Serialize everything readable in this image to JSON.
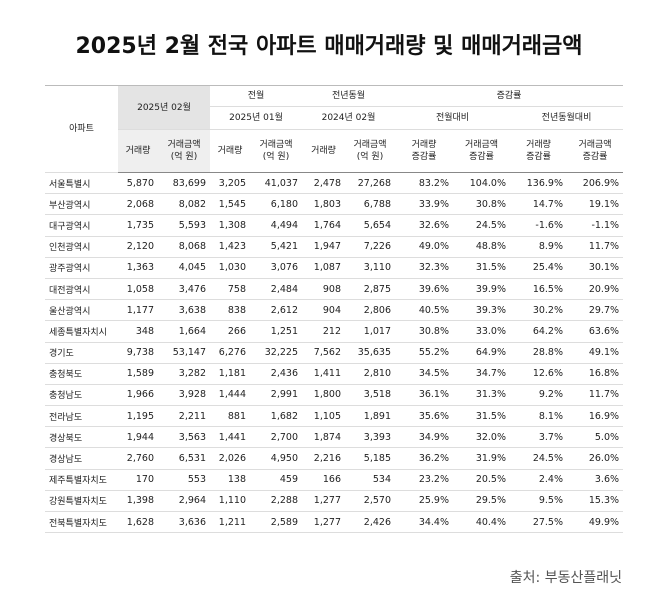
{
  "title": "2025년 2월 전국 아파트 매매거래량 및 매매거래금액",
  "table": {
    "header": {
      "region": "아파트",
      "current": "2025년 02월",
      "prev_month": "전월",
      "prev_year": "전년동월",
      "change": "증감률",
      "prev_month_date": "2025년 01월",
      "prev_year_date": "2024년 02월",
      "mom": "전월대비",
      "yoy": "전년동월대비",
      "columns": [
        "거래량",
        "거래금액\n(억 원)",
        "거래량",
        "거래금액\n(억 원)",
        "거래량",
        "거래금액\n(억 원)",
        "거래량\n증감률",
        "거래금액\n증감률",
        "거래량\n증감률",
        "거래금액\n증감률"
      ]
    },
    "rows": [
      [
        "서울특별시",
        "5,870",
        "83,699",
        "3,205",
        "41,037",
        "2,478",
        "27,268",
        {
          "value": 83.2,
          "label": "83.2%"
        },
        {
          "value": 104.0,
          "label": "104.0%"
        },
        {
          "value": 136.9,
          "label": "136.9%"
        },
        {
          "value": 206.9,
          "label": "206.9%"
        }
      ],
      [
        "부산광역시",
        "2,068",
        "8,082",
        "1,545",
        "6,180",
        "1,803",
        "6,788",
        {
          "value": 33.9,
          "label": "33.9%"
        },
        {
          "value": 30.8,
          "label": "30.8%"
        },
        {
          "value": 14.7,
          "label": "14.7%"
        },
        {
          "value": 19.1,
          "label": "19.1%"
        }
      ],
      [
        "대구광역시",
        "1,735",
        "5,593",
        "1,308",
        "4,494",
        "1,764",
        "5,654",
        {
          "value": 32.6,
          "label": "32.6%"
        },
        {
          "value": 24.5,
          "label": "24.5%"
        },
        {
          "value": -1.6,
          "label": "-1.6%"
        },
        {
          "value": -1.1,
          "label": "-1.1%"
        }
      ],
      [
        "인천광역시",
        "2,120",
        "8,068",
        "1,423",
        "5,421",
        "1,947",
        "7,226",
        {
          "value": 49.0,
          "label": "49.0%"
        },
        {
          "value": 48.8,
          "label": "48.8%"
        },
        {
          "value": 8.9,
          "label": "8.9%"
        },
        {
          "value": 11.7,
          "label": "11.7%"
        }
      ],
      [
        "광주광역시",
        "1,363",
        "4,045",
        "1,030",
        "3,076",
        "1,087",
        "3,110",
        {
          "value": 32.3,
          "label": "32.3%"
        },
        {
          "value": 31.5,
          "label": "31.5%"
        },
        {
          "value": 25.4,
          "label": "25.4%"
        },
        {
          "value": 30.1,
          "label": "30.1%"
        }
      ],
      [
        "대전광역시",
        "1,058",
        "3,476",
        "758",
        "2,484",
        "908",
        "2,875",
        {
          "value": 39.6,
          "label": "39.6%"
        },
        {
          "value": 39.9,
          "label": "39.9%"
        },
        {
          "value": 16.5,
          "label": "16.5%"
        },
        {
          "value": 20.9,
          "label": "20.9%"
        }
      ],
      [
        "울산광역시",
        "1,177",
        "3,638",
        "838",
        "2,612",
        "904",
        "2,806",
        {
          "value": 40.5,
          "label": "40.5%"
        },
        {
          "value": 39.3,
          "label": "39.3%"
        },
        {
          "value": 30.2,
          "label": "30.2%"
        },
        {
          "value": 29.7,
          "label": "29.7%"
        }
      ],
      [
        "세종특별자치시",
        "348",
        "1,664",
        "266",
        "1,251",
        "212",
        "1,017",
        {
          "value": 30.8,
          "label": "30.8%"
        },
        {
          "value": 33.0,
          "label": "33.0%"
        },
        {
          "value": 64.2,
          "label": "64.2%"
        },
        {
          "value": 63.6,
          "label": "63.6%"
        }
      ],
      [
        "경기도",
        "9,738",
        "53,147",
        "6,276",
        "32,225",
        "7,562",
        "35,635",
        {
          "value": 55.2,
          "label": "55.2%"
        },
        {
          "value": 64.9,
          "label": "64.9%"
        },
        {
          "value": 28.8,
          "label": "28.8%"
        },
        {
          "value": 49.1,
          "label": "49.1%"
        }
      ],
      [
        "충청북도",
        "1,589",
        "3,282",
        "1,181",
        "2,436",
        "1,411",
        "2,810",
        {
          "value": 34.5,
          "label": "34.5%"
        },
        {
          "value": 34.7,
          "label": "34.7%"
        },
        {
          "value": 12.6,
          "label": "12.6%"
        },
        {
          "value": 16.8,
          "label": "16.8%"
        }
      ],
      [
        "충청남도",
        "1,966",
        "3,928",
        "1,444",
        "2,991",
        "1,800",
        "3,518",
        {
          "value": 36.1,
          "label": "36.1%"
        },
        {
          "value": 31.3,
          "label": "31.3%"
        },
        {
          "value": 9.2,
          "label": "9.2%"
        },
        {
          "value": 11.7,
          "label": "11.7%"
        }
      ],
      [
        "전라남도",
        "1,195",
        "2,211",
        "881",
        "1,682",
        "1,105",
        "1,891",
        {
          "value": 35.6,
          "label": "35.6%"
        },
        {
          "value": 31.5,
          "label": "31.5%"
        },
        {
          "value": 8.1,
          "label": "8.1%"
        },
        {
          "value": 16.9,
          "label": "16.9%"
        }
      ],
      [
        "경상북도",
        "1,944",
        "3,563",
        "1,441",
        "2,700",
        "1,874",
        "3,393",
        {
          "value": 34.9,
          "label": "34.9%"
        },
        {
          "value": 32.0,
          "label": "32.0%"
        },
        {
          "value": 3.7,
          "label": "3.7%"
        },
        {
          "value": 5.0,
          "label": "5.0%"
        }
      ],
      [
        "경상남도",
        "2,760",
        "6,531",
        "2,026",
        "4,950",
        "2,216",
        "5,185",
        {
          "value": 36.2,
          "label": "36.2%"
        },
        {
          "value": 31.9,
          "label": "31.9%"
        },
        {
          "value": 24.5,
          "label": "24.5%"
        },
        {
          "value": 26.0,
          "label": "26.0%"
        }
      ],
      [
        "제주특별자치도",
        "170",
        "553",
        "138",
        "459",
        "166",
        "534",
        {
          "value": 23.2,
          "label": "23.2%"
        },
        {
          "value": 20.5,
          "label": "20.5%"
        },
        {
          "value": 2.4,
          "label": "2.4%"
        },
        {
          "value": 3.6,
          "label": "3.6%"
        }
      ],
      [
        "강원특별자치도",
        "1,398",
        "2,964",
        "1,110",
        "2,288",
        "1,277",
        "2,570",
        {
          "value": 25.9,
          "label": "25.9%"
        },
        {
          "value": 29.5,
          "label": "29.5%"
        },
        {
          "value": 9.5,
          "label": "9.5%"
        },
        {
          "value": 15.3,
          "label": "15.3%"
        }
      ],
      [
        "전북특별자치도",
        "1,628",
        "3,636",
        "1,211",
        "2,589",
        "1,277",
        "2,426",
        {
          "value": 34.4,
          "label": "34.4%"
        },
        {
          "value": 40.4,
          "label": "40.4%"
        },
        {
          "value": 27.5,
          "label": "27.5%"
        },
        {
          "value": 49.9,
          "label": "49.9%"
        }
      ]
    ]
  },
  "source": "출처: 부동산플래닛"
}
